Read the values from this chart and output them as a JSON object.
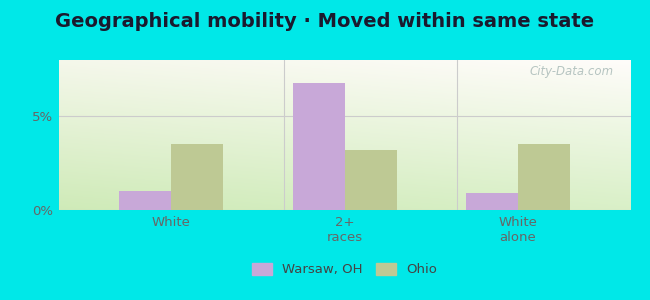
{
  "title": "Geographical mobility · Moved within same state",
  "categories": [
    "White",
    "2+\nraces",
    "White\nalone"
  ],
  "warsaw_values": [
    1.0,
    6.8,
    0.9
  ],
  "ohio_values": [
    3.5,
    3.2,
    3.5
  ],
  "warsaw_color": "#c8a8d8",
  "ohio_color": "#bec994",
  "ylim": [
    0,
    8
  ],
  "ytick_labels": [
    "0%",
    "5%"
  ],
  "background_color": "#00e8e8",
  "bar_width": 0.3,
  "title_fontsize": 14,
  "legend_warsaw": "Warsaw, OH",
  "legend_ohio": "Ohio",
  "watermark": "City-Data.com",
  "divider_color": "#cccccc",
  "tick_color": "#666666",
  "title_color": "#1a1a2e"
}
